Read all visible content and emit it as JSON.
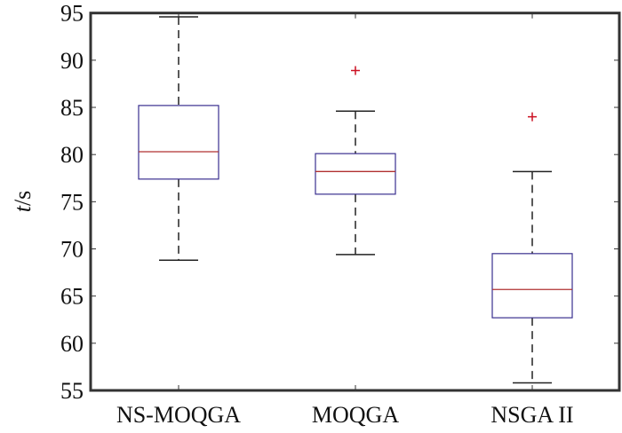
{
  "chart_data": {
    "type": "box",
    "title": "",
    "xlabel": "",
    "ylabel": "t/s",
    "ylabel_italic": "t",
    "ylabel_unit": "/s",
    "ylim": [
      55,
      95
    ],
    "yticks": [
      55,
      60,
      65,
      70,
      75,
      80,
      85,
      90,
      95
    ],
    "categories": [
      "NS-MOQGA",
      "MOQGA",
      "NSGA II"
    ],
    "boxes": [
      {
        "name": "NS-MOQGA",
        "whisker_low": 68.8,
        "q1": 77.4,
        "median": 80.3,
        "q3": 85.2,
        "whisker_high": 94.6,
        "outliers": []
      },
      {
        "name": "MOQGA",
        "whisker_low": 69.4,
        "q1": 75.8,
        "median": 78.2,
        "q3": 80.1,
        "whisker_high": 84.6,
        "outliers": [
          88.9
        ]
      },
      {
        "name": "NSGA II",
        "whisker_low": 55.8,
        "q1": 62.7,
        "median": 65.7,
        "q3": 69.5,
        "whisker_high": 78.2,
        "outliers": [
          84.0
        ]
      }
    ],
    "grid": false,
    "colors": {
      "box": "#3a2f8f",
      "median": "#b03030",
      "whisker": "#222222",
      "outlier": "#cc1122",
      "axis": "#333333"
    }
  }
}
